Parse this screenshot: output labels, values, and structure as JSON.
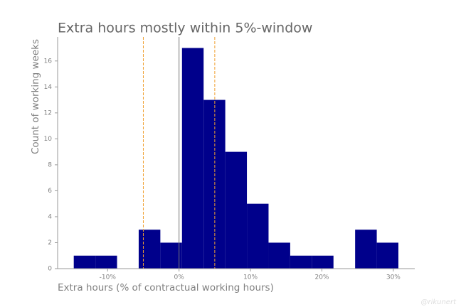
{
  "chart_data": {
    "type": "histogram",
    "title": "Extra hours mostly within 5%-window",
    "x_label": "Extra hours (% of contractual working hours)",
    "y_label": "Count of working weeks",
    "watermark": "@rikunert",
    "bins": [
      -14.74,
      -11.71,
      -8.68,
      -5.65,
      -2.62,
      0.41,
      3.44,
      6.47,
      9.5,
      12.53,
      15.56,
      18.59,
      21.62,
      24.65,
      27.68,
      30.71
    ],
    "values": [
      1,
      1,
      0,
      3,
      2,
      17,
      13,
      9,
      5,
      2,
      1,
      1,
      0,
      3,
      2
    ],
    "color": "#00008b",
    "xlim": [
      -17,
      33
    ],
    "ylim": [
      0,
      17.85
    ],
    "xticks": [
      {
        "value": -10,
        "label": "-10%"
      },
      {
        "value": 0,
        "label": "0%"
      },
      {
        "value": 10,
        "label": "10%"
      },
      {
        "value": 20,
        "label": "20%"
      },
      {
        "value": 30,
        "label": "30%"
      }
    ],
    "yticks": [
      0,
      2,
      4,
      6,
      8,
      10,
      12,
      14,
      16
    ],
    "vlines": [
      {
        "value": -5,
        "color": "#f0a030",
        "dashed": true
      },
      {
        "value": 0,
        "color": "#777777",
        "dashed": false
      },
      {
        "value": 5,
        "color": "#f0a030",
        "dashed": true
      }
    ],
    "grid": false
  }
}
